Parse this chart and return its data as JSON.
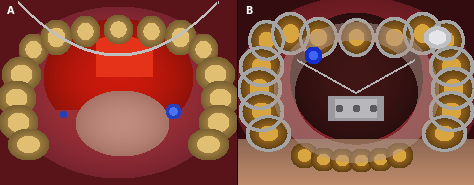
{
  "fig_width": 4.74,
  "fig_height": 1.85,
  "dpi": 100,
  "label_A": "A",
  "label_B": "B",
  "label_color": "#ffffff",
  "label_fontsize": 7,
  "label_fontweight": "bold",
  "bg_color": "#000000"
}
